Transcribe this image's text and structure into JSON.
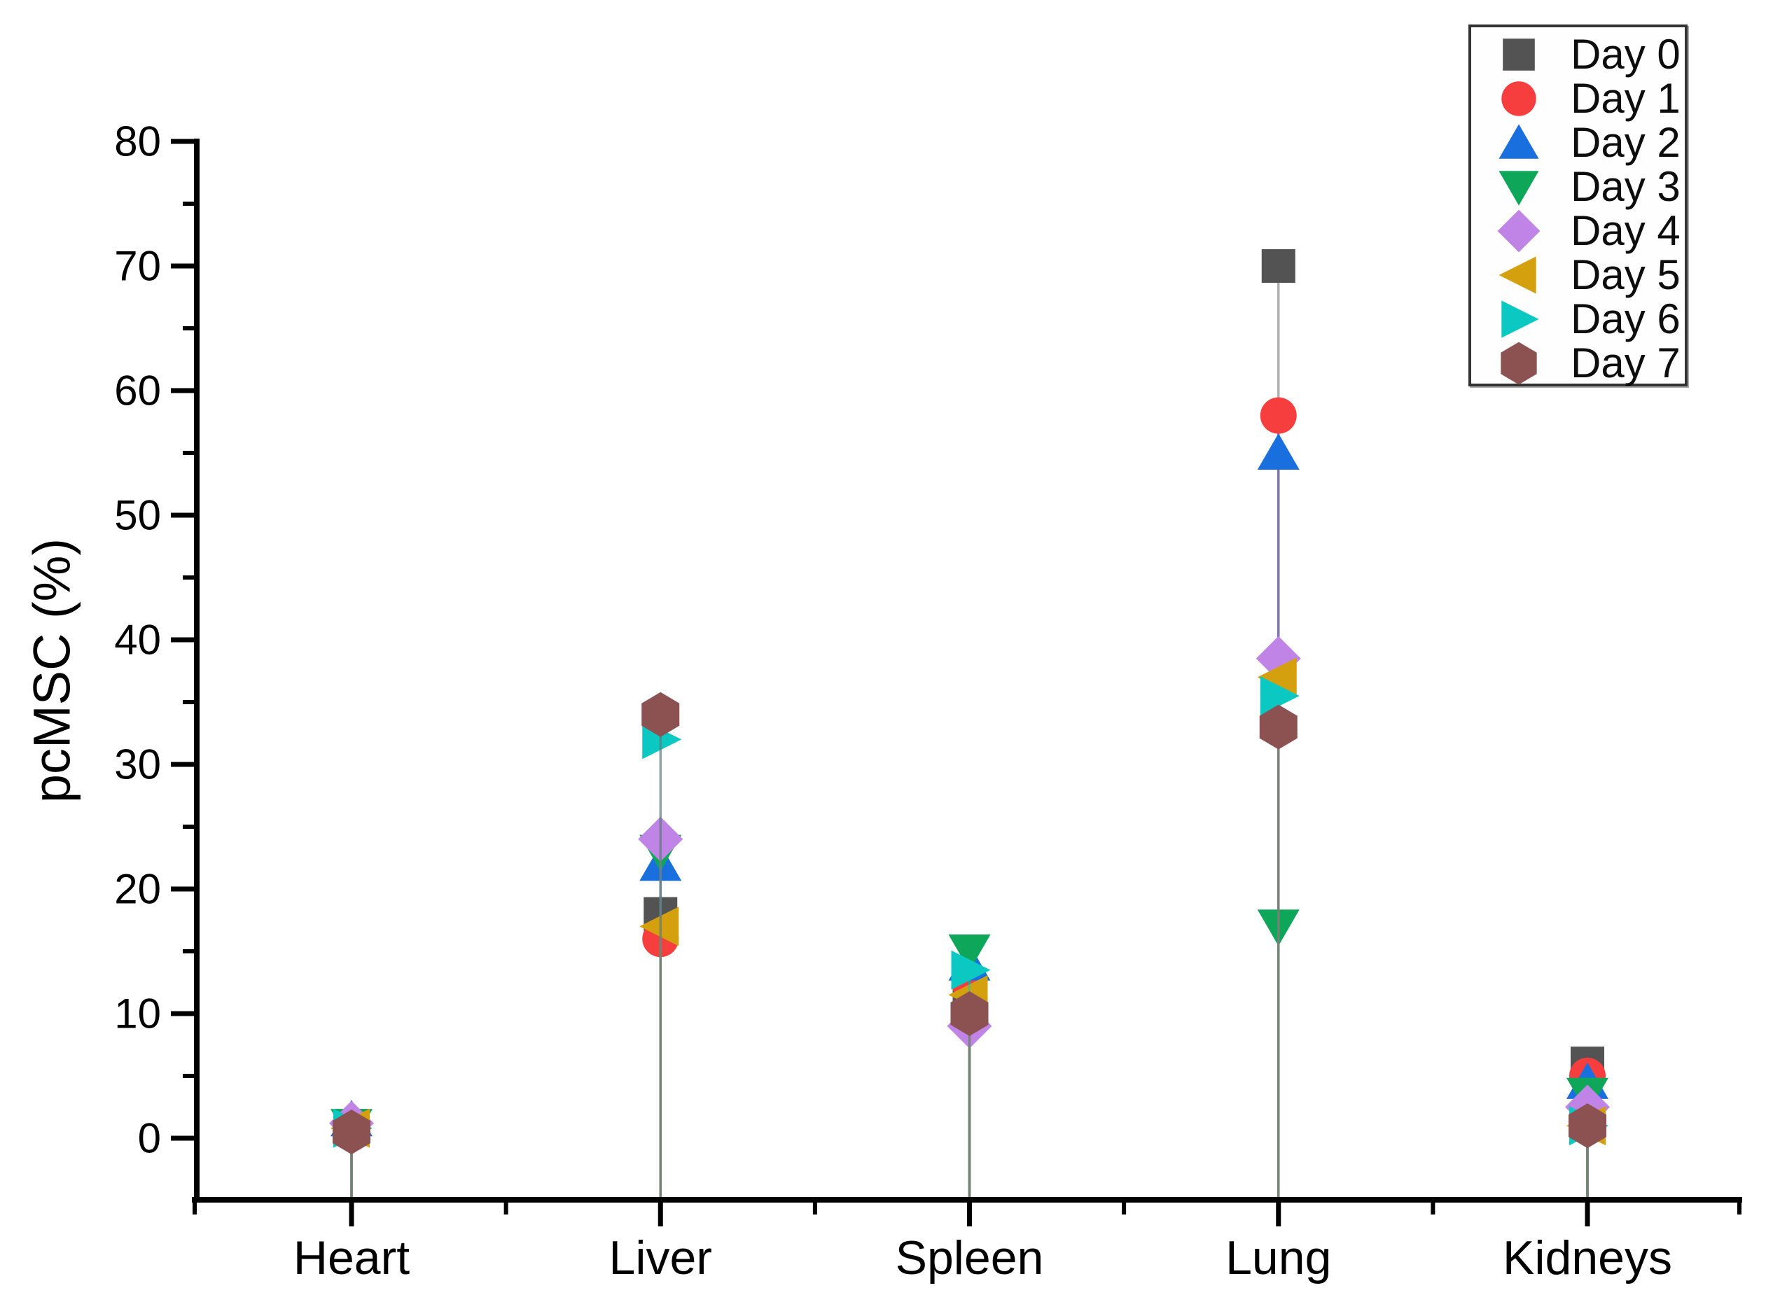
{
  "chart_data": {
    "type": "scatter",
    "title": "",
    "xlabel": "",
    "ylabel": "pcMSC (%)",
    "categories": [
      "Heart",
      "Liver",
      "Spleen",
      "Lung",
      "Kidneys"
    ],
    "ylim": [
      -5,
      80
    ],
    "y_major_ticks": [
      0,
      10,
      20,
      30,
      40,
      50,
      60,
      70,
      80
    ],
    "y_minor_ticks": [
      5,
      15,
      25,
      35,
      45,
      55,
      65,
      75
    ],
    "grid": "off",
    "legend_position": "top-right",
    "marker_note": "each point has a thin drop line down to the x-axis in the series color",
    "series": [
      {
        "name": "Day 0",
        "marker": "square",
        "color": "#535353",
        "values": [
          1.0,
          18.0,
          11.5,
          70.0,
          6.0
        ]
      },
      {
        "name": "Day 1",
        "marker": "circle",
        "color": "#F73E3E",
        "values": [
          0.5,
          16.0,
          12.5,
          58.0,
          5.0
        ]
      },
      {
        "name": "Day 2",
        "marker": "triangle-up",
        "color": "#1A6FDF",
        "values": [
          1.5,
          22.0,
          14.0,
          55.0,
          4.5
        ]
      },
      {
        "name": "Day 3",
        "marker": "triangle-down",
        "color": "#0EA75A",
        "values": [
          1.0,
          23.0,
          15.0,
          17.0,
          3.5
        ]
      },
      {
        "name": "Day 4",
        "marker": "diamond",
        "color": "#BF84E6",
        "values": [
          1.2,
          24.0,
          9.0,
          38.5,
          2.5
        ]
      },
      {
        "name": "Day 5",
        "marker": "triangle-left",
        "color": "#D5A00E",
        "values": [
          0.8,
          17.0,
          11.5,
          37.0,
          1.0
        ]
      },
      {
        "name": "Day 6",
        "marker": "triangle-right",
        "color": "#0BC8C3",
        "values": [
          0.8,
          32.0,
          13.5,
          35.5,
          1.0
        ]
      },
      {
        "name": "Day 7",
        "marker": "hexagon",
        "color": "#8C5151",
        "values": [
          0.5,
          34.0,
          10.0,
          33.0,
          1.0
        ]
      }
    ]
  }
}
